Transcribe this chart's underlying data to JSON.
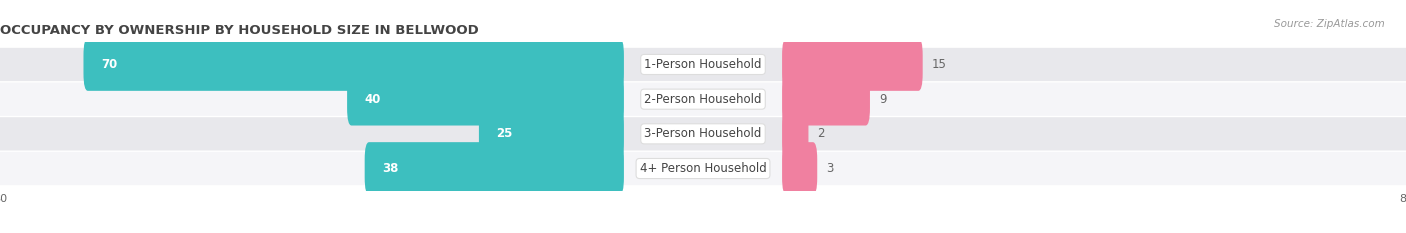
{
  "title": "OCCUPANCY BY OWNERSHIP BY HOUSEHOLD SIZE IN BELLWOOD",
  "source": "Source: ZipAtlas.com",
  "categories": [
    "1-Person Household",
    "2-Person Household",
    "3-Person Household",
    "4+ Person Household"
  ],
  "owner_values": [
    70,
    40,
    25,
    38
  ],
  "renter_values": [
    15,
    9,
    2,
    3
  ],
  "owner_color": "#3DBFBF",
  "renter_color": "#F080A0",
  "label_color": "#666666",
  "axis_max": 80,
  "bar_height": 0.52,
  "row_bg_even": "#e8e8ec",
  "row_bg_odd": "#f5f5f8",
  "title_fontsize": 9.5,
  "source_fontsize": 7.5,
  "label_fontsize": 8.5,
  "value_fontsize": 8.5,
  "tick_fontsize": 8,
  "legend_fontsize": 8
}
